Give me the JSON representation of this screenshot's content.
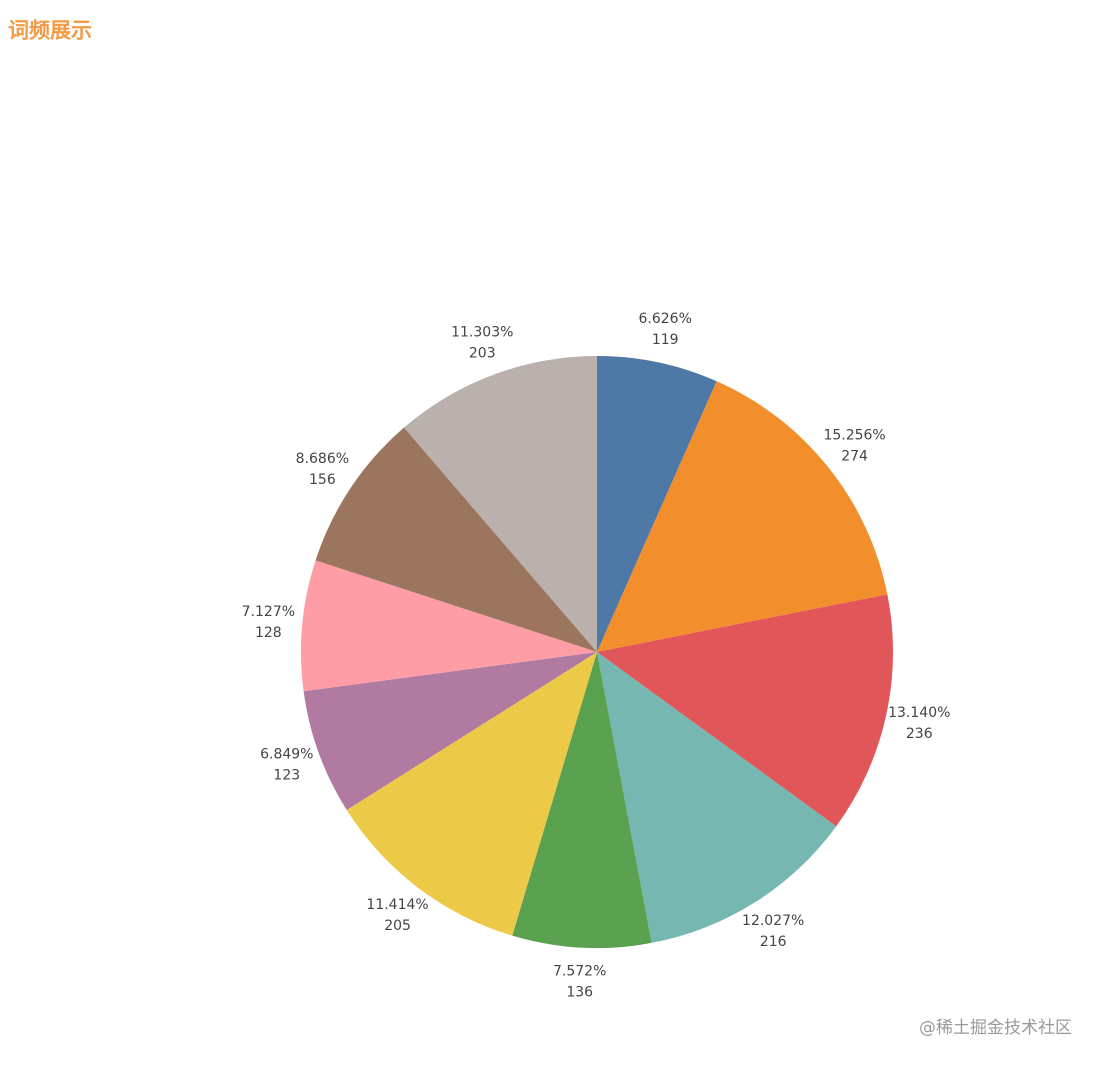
{
  "chart_data": {
    "type": "pie",
    "title": "词频展示",
    "values": [
      119,
      274,
      236,
      216,
      136,
      205,
      123,
      128,
      156,
      203
    ],
    "percent_labels": [
      "6.626%",
      "15.256%",
      "13.140%",
      "12.027%",
      "7.572%",
      "11.414%",
      "6.849%",
      "7.127%",
      "8.686%",
      "11.303%"
    ],
    "colors": [
      "#4e79a7",
      "#f28e2b",
      "#e15759",
      "#76b7b2",
      "#59a14f",
      "#edc948",
      "#b07aa1",
      "#ff9da7",
      "#9c755f",
      "#bab0ac"
    ],
    "watermark": "@稀土掘金技术社区"
  }
}
